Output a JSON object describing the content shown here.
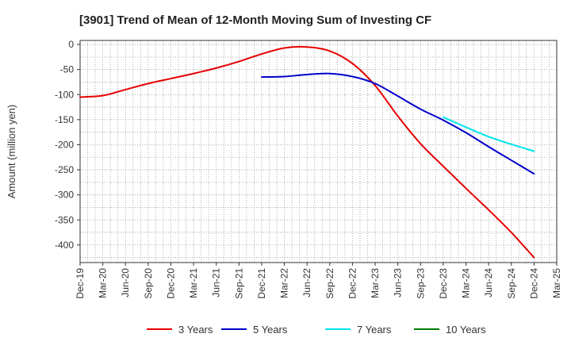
{
  "chart_data": {
    "type": "line",
    "title": "[3901]  Trend of Mean of 12-Month Moving Sum of Investing CF",
    "xlabel": "",
    "ylabel": "Amount (million yen)",
    "ylim": [
      -435,
      8
    ],
    "yticks": [
      0,
      -50,
      -100,
      -150,
      -200,
      -250,
      -300,
      -350,
      -400
    ],
    "categories": [
      "Dec-19",
      "Mar-20",
      "Jun-20",
      "Sep-20",
      "Dec-20",
      "Mar-21",
      "Jun-21",
      "Sep-21",
      "Dec-21",
      "Mar-22",
      "Jun-22",
      "Sep-22",
      "Dec-22",
      "Mar-23",
      "Jun-23",
      "Sep-23",
      "Dec-23",
      "Mar-24",
      "Jun-24",
      "Sep-24",
      "Dec-24",
      "Mar-25"
    ],
    "grid": true,
    "legend_position": "bottom",
    "series": [
      {
        "name": "3 Years",
        "color": "#e60000",
        "values": [
          -105,
          -102,
          -90,
          -78,
          -68,
          -58,
          -47,
          -34,
          -19,
          -7,
          -5,
          -13,
          -38,
          -82,
          -143,
          -198,
          -243,
          -287,
          -330,
          -375,
          -425,
          null
        ]
      },
      {
        "name": "5 Years",
        "color": "#0000cc",
        "values": [
          null,
          null,
          null,
          null,
          null,
          null,
          null,
          null,
          -65,
          -64,
          -60,
          -58,
          -64,
          -78,
          -103,
          -129,
          -151,
          -176,
          -204,
          -231,
          -258,
          null
        ]
      },
      {
        "name": "7 Years",
        "color": "#00e5ee",
        "values": [
          null,
          null,
          null,
          null,
          null,
          null,
          null,
          null,
          null,
          null,
          null,
          null,
          null,
          null,
          null,
          null,
          -145,
          -165,
          -184,
          -199,
          -213,
          null
        ]
      },
      {
        "name": "10 Years",
        "color": "#007a00",
        "values": [
          null,
          null,
          null,
          null,
          null,
          null,
          null,
          null,
          null,
          null,
          null,
          null,
          null,
          null,
          null,
          null,
          null,
          null,
          null,
          null,
          null,
          null
        ]
      }
    ]
  }
}
